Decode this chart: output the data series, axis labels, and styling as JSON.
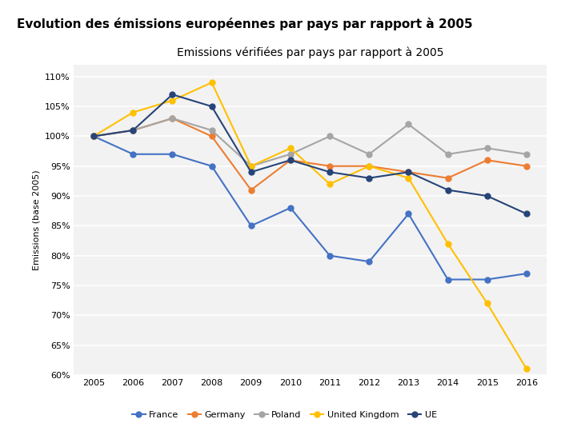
{
  "title_main": "Evolution des émissions européennes par pays par rapport à 2005",
  "title_chart": "Emissions vérifiées par pays par rapport à 2005",
  "ylabel": "Emissions (base 2005)",
  "years": [
    2005,
    2006,
    2007,
    2008,
    2009,
    2010,
    2011,
    2012,
    2013,
    2014,
    2015,
    2016
  ],
  "series": {
    "France": {
      "values": [
        100,
        97,
        97,
        95,
        85,
        88,
        80,
        79,
        87,
        76,
        76,
        77
      ],
      "color": "#4472C4",
      "marker": "o",
      "linewidth": 1.5,
      "zorder": 3
    },
    "Germany": {
      "values": [
        100,
        101,
        103,
        100,
        91,
        96,
        95,
        95,
        94,
        93,
        96,
        95
      ],
      "color": "#ED7D31",
      "marker": "o",
      "linewidth": 1.5,
      "zorder": 3
    },
    "Poland": {
      "values": [
        100,
        101,
        103,
        101,
        95,
        97,
        100,
        97,
        102,
        97,
        98,
        97
      ],
      "color": "#A5A5A5",
      "marker": "o",
      "linewidth": 1.5,
      "zorder": 3
    },
    "United Kingdom": {
      "values": [
        100,
        104,
        106,
        109,
        95,
        98,
        92,
        95,
        93,
        82,
        72,
        61
      ],
      "color": "#FFC000",
      "marker": "o",
      "linewidth": 1.5,
      "zorder": 3
    },
    "UE": {
      "values": [
        100,
        101,
        107,
        105,
        94,
        96,
        94,
        93,
        94,
        91,
        90,
        87
      ],
      "color": "#264478",
      "marker": "o",
      "linewidth": 1.5,
      "zorder": 3
    }
  },
  "ylim": [
    60,
    112
  ],
  "yticks": [
    60,
    65,
    70,
    75,
    80,
    85,
    90,
    95,
    100,
    105,
    110
  ],
  "background_color": "#F2F2F2",
  "grid_color": "#FFFFFF",
  "outer_background": "#FFFFFF",
  "marker_size": 5
}
